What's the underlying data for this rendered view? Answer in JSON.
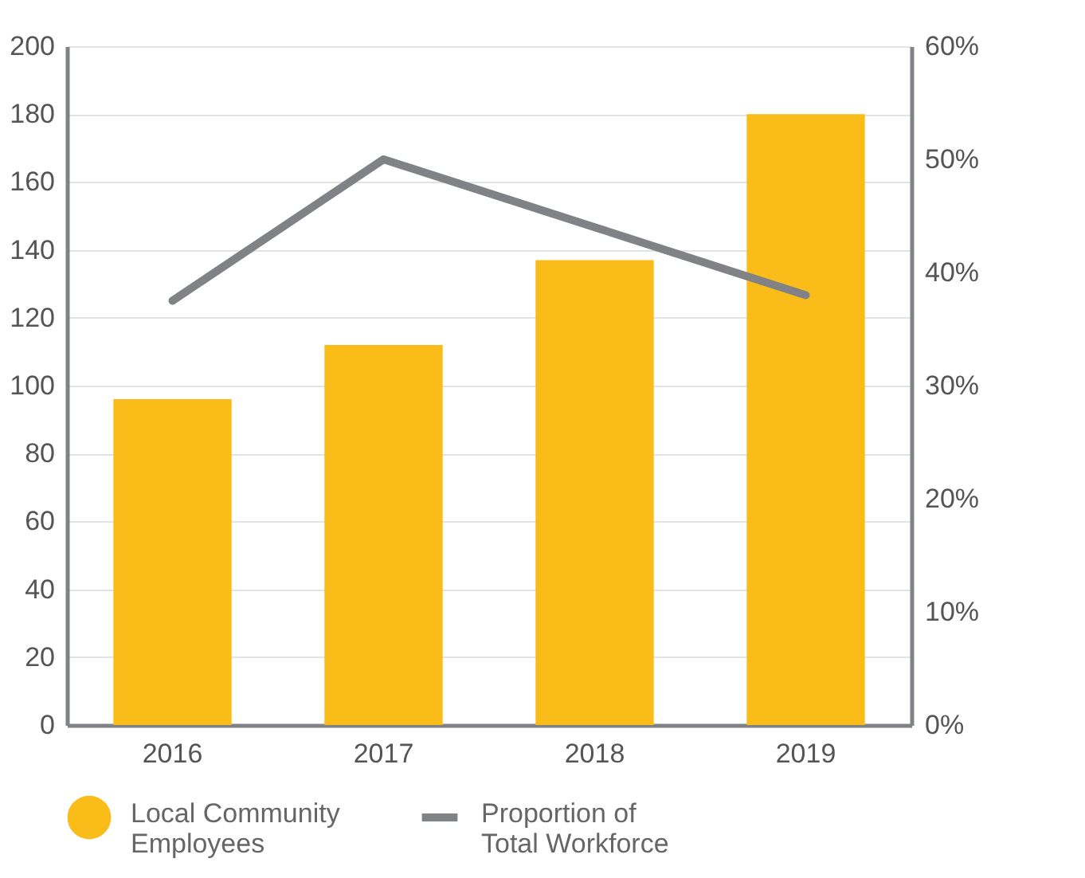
{
  "chart_data": {
    "type": "bar",
    "categories": [
      "2016",
      "2017",
      "2018",
      "2019"
    ],
    "series": [
      {
        "name": "Local Community Employees",
        "color": "#f9bc18",
        "values": [
          96,
          112,
          137,
          180
        ]
      },
      {
        "name": "Proportion of Total Workforce",
        "type": "line",
        "axis": "y2",
        "color": "#808285",
        "values": [
          37.5,
          50,
          44,
          38
        ]
      }
    ],
    "ylim": [
      0,
      200
    ],
    "yticks": [
      0,
      20,
      40,
      60,
      80,
      100,
      120,
      140,
      160,
      180,
      200
    ],
    "y2lim": [
      0,
      60
    ],
    "y2ticks": [
      {
        "value": 0,
        "label": "0%"
      },
      {
        "value": 10,
        "label": "10%"
      },
      {
        "value": 20,
        "label": "20%"
      },
      {
        "value": 30,
        "label": "30%"
      },
      {
        "value": 40,
        "label": "40%"
      },
      {
        "value": 50,
        "label": "50%"
      },
      {
        "value": 60,
        "label": "60%"
      }
    ],
    "grid": "y",
    "legend": "bottom",
    "marker": "none",
    "line_style": "solid"
  }
}
